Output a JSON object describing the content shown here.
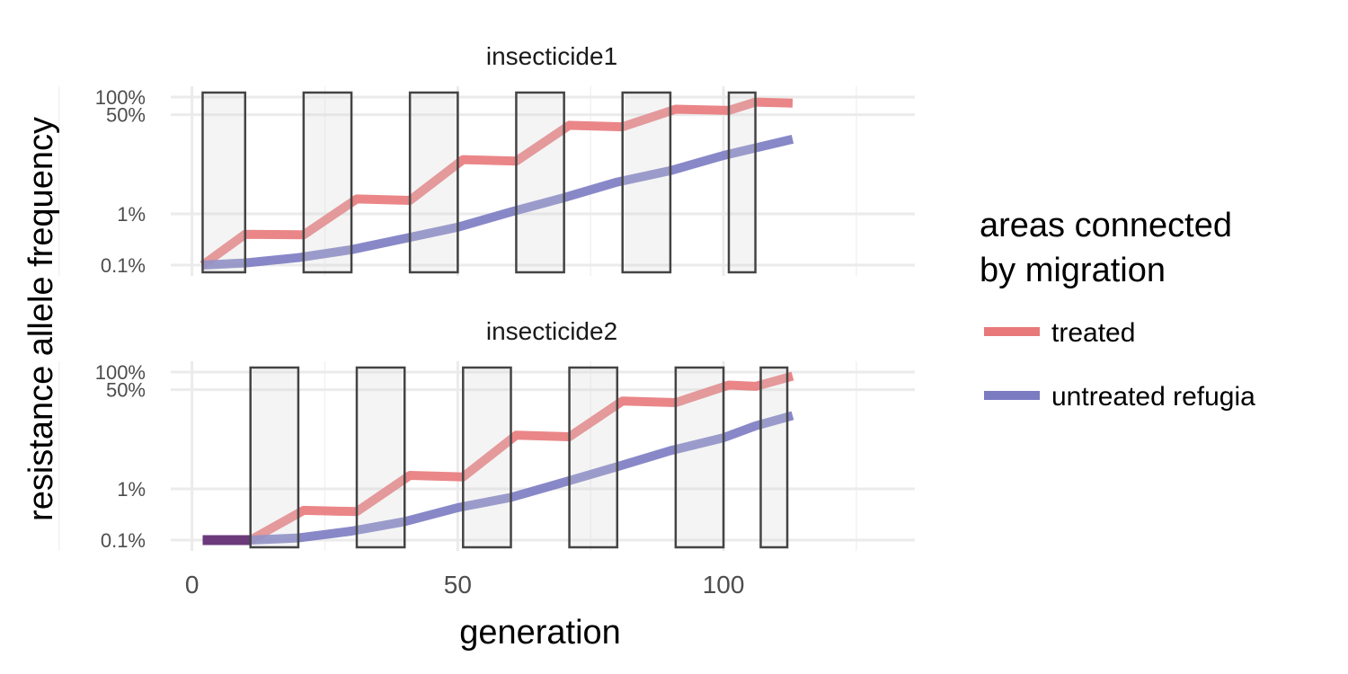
{
  "chart_data": {
    "type": "line",
    "xlabel": "generation",
    "ylabel": "resistance allele frequency",
    "xlim": [
      -4,
      136
    ],
    "x_ticks": [
      {
        "value": 0,
        "label": "0"
      },
      {
        "value": 50,
        "label": "50"
      },
      {
        "value": 100,
        "label": "100"
      }
    ],
    "y_scale": "log",
    "y_ticks": [
      {
        "value": 0.001,
        "label": "0.1%"
      },
      {
        "value": 0.01,
        "label": "1%"
      },
      {
        "value": 0.5,
        "label": "50%"
      },
      {
        "value": 1.0,
        "label": "100%"
      }
    ],
    "legend": {
      "title_line1": "areas connected",
      "title_line2": "by migration",
      "position": "right",
      "entries": [
        {
          "label": "treated",
          "color": "#e8797b"
        },
        {
          "label": "untreated refugia",
          "color": "#7b7bc2"
        }
      ]
    },
    "inactive_color": "#6b3a7a",
    "panels": [
      {
        "strip": "insecticide1",
        "periods": [
          [
            2,
            10
          ],
          [
            21,
            30
          ],
          [
            41,
            50
          ],
          [
            61,
            70
          ],
          [
            81,
            90
          ],
          [
            101,
            106
          ]
        ],
        "series": [
          {
            "name": "treated",
            "x": [
              2,
              10,
              21,
              31,
              41,
              51,
              61,
              71,
              81,
              91,
              101,
              106,
              113
            ],
            "y": [
              0.001,
              0.004,
              0.0039,
              0.018,
              0.017,
              0.085,
              0.08,
              0.33,
              0.31,
              0.62,
              0.59,
              0.82,
              0.79
            ]
          },
          {
            "name": "untreated refugia",
            "x": [
              2,
              10,
              20,
              30,
              40,
              50,
              60,
              70,
              80,
              90,
              100,
              106,
              113
            ],
            "y": [
              0.001,
              0.0011,
              0.0014,
              0.002,
              0.0033,
              0.0055,
              0.0108,
              0.019,
              0.035,
              0.055,
              0.1,
              0.135,
              0.19
            ]
          }
        ],
        "inactive_segment": null
      },
      {
        "strip": "insecticide2",
        "periods": [
          [
            11,
            20
          ],
          [
            31,
            40
          ],
          [
            51,
            60
          ],
          [
            71,
            80
          ],
          [
            91,
            100
          ],
          [
            107,
            112
          ]
        ],
        "series": [
          {
            "name": "treated",
            "x": [
              11,
              21,
              31,
              41,
              51,
              61,
              71,
              81,
              91,
              101,
              106,
              113
            ],
            "y": [
              0.001,
              0.0038,
              0.0036,
              0.017,
              0.016,
              0.083,
              0.078,
              0.32,
              0.3,
              0.6,
              0.57,
              0.85
            ]
          },
          {
            "name": "untreated refugia",
            "x": [
              11,
              20,
              30,
              40,
              50,
              60,
              70,
              80,
              90,
              100,
              106,
              113
            ],
            "y": [
              0.001,
              0.0011,
              0.0015,
              0.0023,
              0.0043,
              0.0068,
              0.013,
              0.024,
              0.045,
              0.075,
              0.12,
              0.18
            ]
          }
        ],
        "inactive_segment": {
          "x": [
            2,
            11
          ],
          "y": 0.001
        }
      }
    ]
  }
}
